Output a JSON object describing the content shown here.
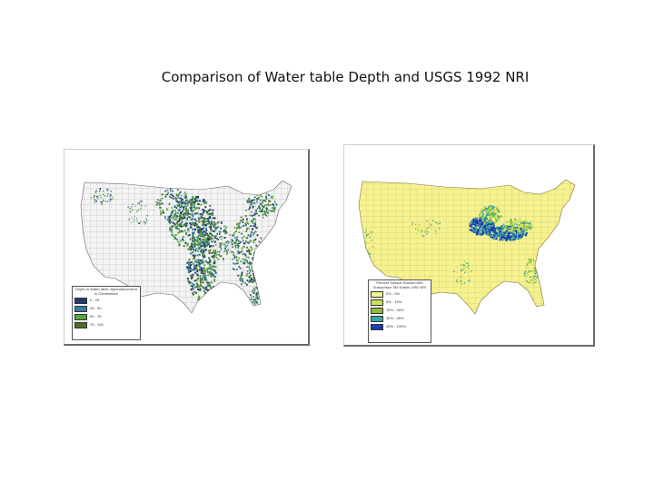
{
  "slide": {
    "title": "Comparison of Water table Depth and USGS 1992 NRI"
  },
  "maps": [
    {
      "name": "water-table-depth",
      "legend_title": "Depth to Water table, Agricultural Area in Centimeters",
      "items": [
        {
          "label": "0 - 25",
          "color": "#1e3d6e"
        },
        {
          "label": "25 - 50",
          "color": "#3a7e9e"
        },
        {
          "label": "50 - 75",
          "color": "#55a83a"
        },
        {
          "label": "75 - 100",
          "color": "#4a6e22"
        }
      ],
      "fill_color": "#f4f4f4",
      "county_line_color": "#9a9a9a"
    },
    {
      "name": "usgs-1992-nri",
      "legend_title": "Percent Subsoil Drained with Subsurface Tile Drains 1992 NRI",
      "items": [
        {
          "label": "0% - 5%",
          "color": "#f6f28e"
        },
        {
          "label": "5% - 15%",
          "color": "#cde05a"
        },
        {
          "label": "15% - 30%",
          "color": "#8fbd3a"
        },
        {
          "label": "30% - 45%",
          "color": "#3aa7a0"
        },
        {
          "label": "45% - 100%",
          "color": "#1a3fae"
        }
      ],
      "fill_color": "#f6f28e",
      "county_line_color": "#b8b27a"
    }
  ]
}
